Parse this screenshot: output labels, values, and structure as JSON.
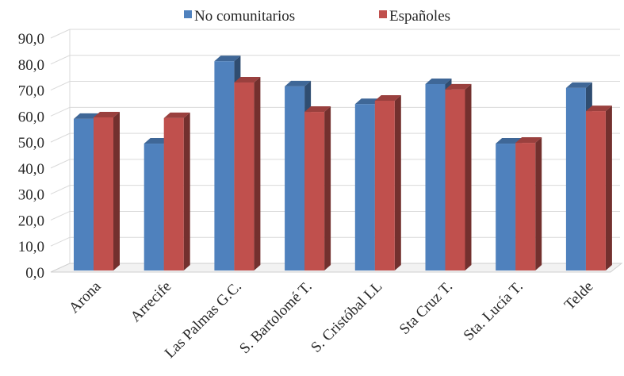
{
  "chart_data": {
    "type": "bar",
    "style": "3d-clustered-column",
    "categories": [
      "Arona",
      "Arrecife",
      "Las Palmas G.C.",
      "S. Bartolomé T.",
      "S. Cristóbal LL",
      "Sta Cruz T.",
      "Sta. Lucía T.",
      "Telde"
    ],
    "series": [
      {
        "name": "No comunitarios",
        "color": "#4F81BD",
        "values": [
          58.3,
          48.8,
          80.5,
          70.8,
          64.0,
          71.7,
          48.8,
          70.2
        ]
      },
      {
        "name": "Españoles",
        "color": "#C0504D",
        "values": [
          58.9,
          58.6,
          72.3,
          61.0,
          65.3,
          69.6,
          49.1,
          61.3
        ]
      }
    ],
    "ylim": [
      0,
      90
    ],
    "yticks": [
      0,
      10,
      20,
      30,
      40,
      50,
      60,
      70,
      80,
      90
    ],
    "ytick_labels": [
      "0,0",
      "10,0",
      "20,0",
      "30,0",
      "40,0",
      "50,0",
      "60,0",
      "70,0",
      "80,0",
      "90,0"
    ],
    "grid": true,
    "legend": "top"
  }
}
